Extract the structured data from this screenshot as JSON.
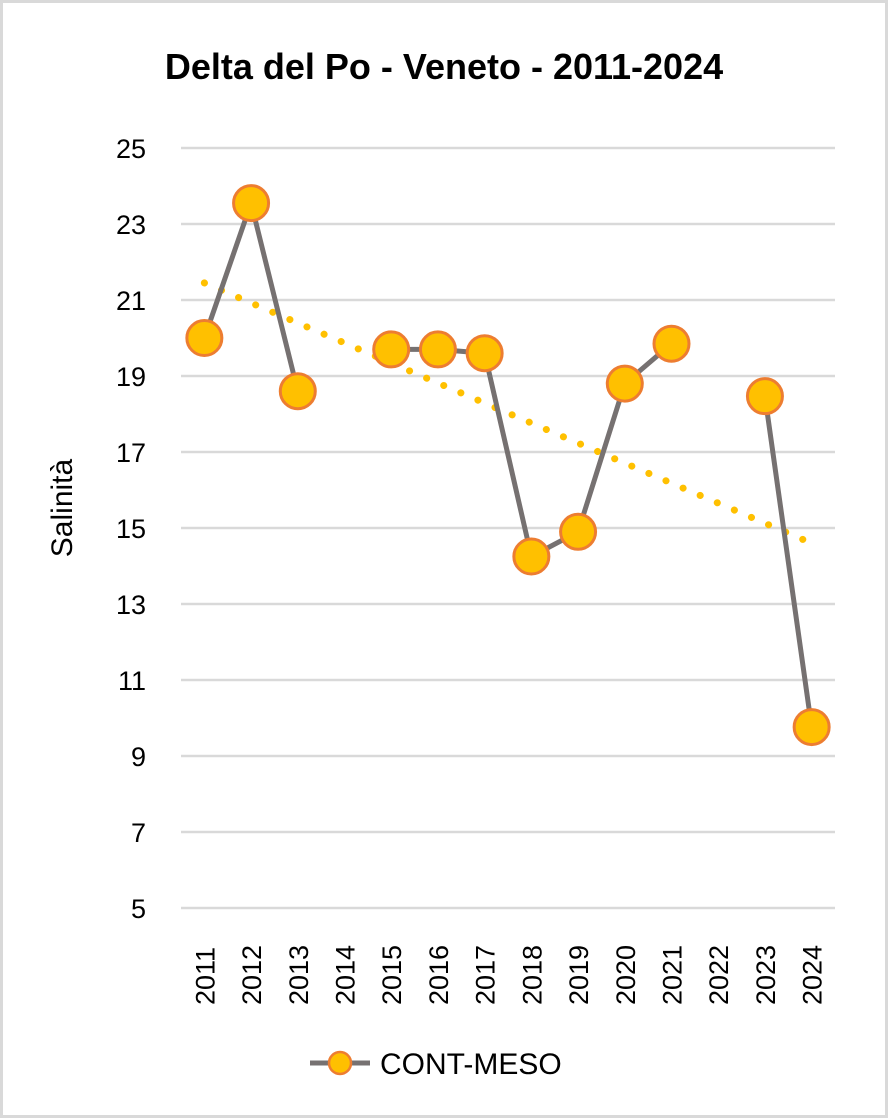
{
  "chart_data": {
    "type": "line",
    "title": "Delta del Po - Veneto - 2011-2024",
    "xlabel": "",
    "ylabel": "Salinità",
    "ylim": [
      5,
      25
    ],
    "yticks": [
      "25",
      "23",
      "21",
      "19",
      "17",
      "15",
      "13",
      "11",
      "9",
      "7",
      "5"
    ],
    "categories": [
      "2011",
      "2012",
      "2013",
      "2014",
      "2015",
      "2016",
      "2017",
      "2018",
      "2019",
      "2020",
      "2021",
      "2022",
      "2023",
      "2024"
    ],
    "series": [
      {
        "name": "CONT-MESO",
        "values": [
          20.0,
          23.55,
          18.6,
          null,
          19.7,
          19.7,
          19.6,
          14.25,
          14.9,
          18.8,
          19.85,
          null,
          18.47,
          9.76
        ],
        "line_color": "#767171",
        "marker_fill": "#FFC000",
        "marker_edge": "#ED7D31"
      }
    ],
    "trendline": {
      "type": "linear",
      "start": 21.45,
      "end": 14.6,
      "color": "#FFC000",
      "style": "dotted"
    },
    "grid": true,
    "legend": {
      "position": "bottom",
      "entries": [
        "CONT-MESO"
      ]
    }
  }
}
